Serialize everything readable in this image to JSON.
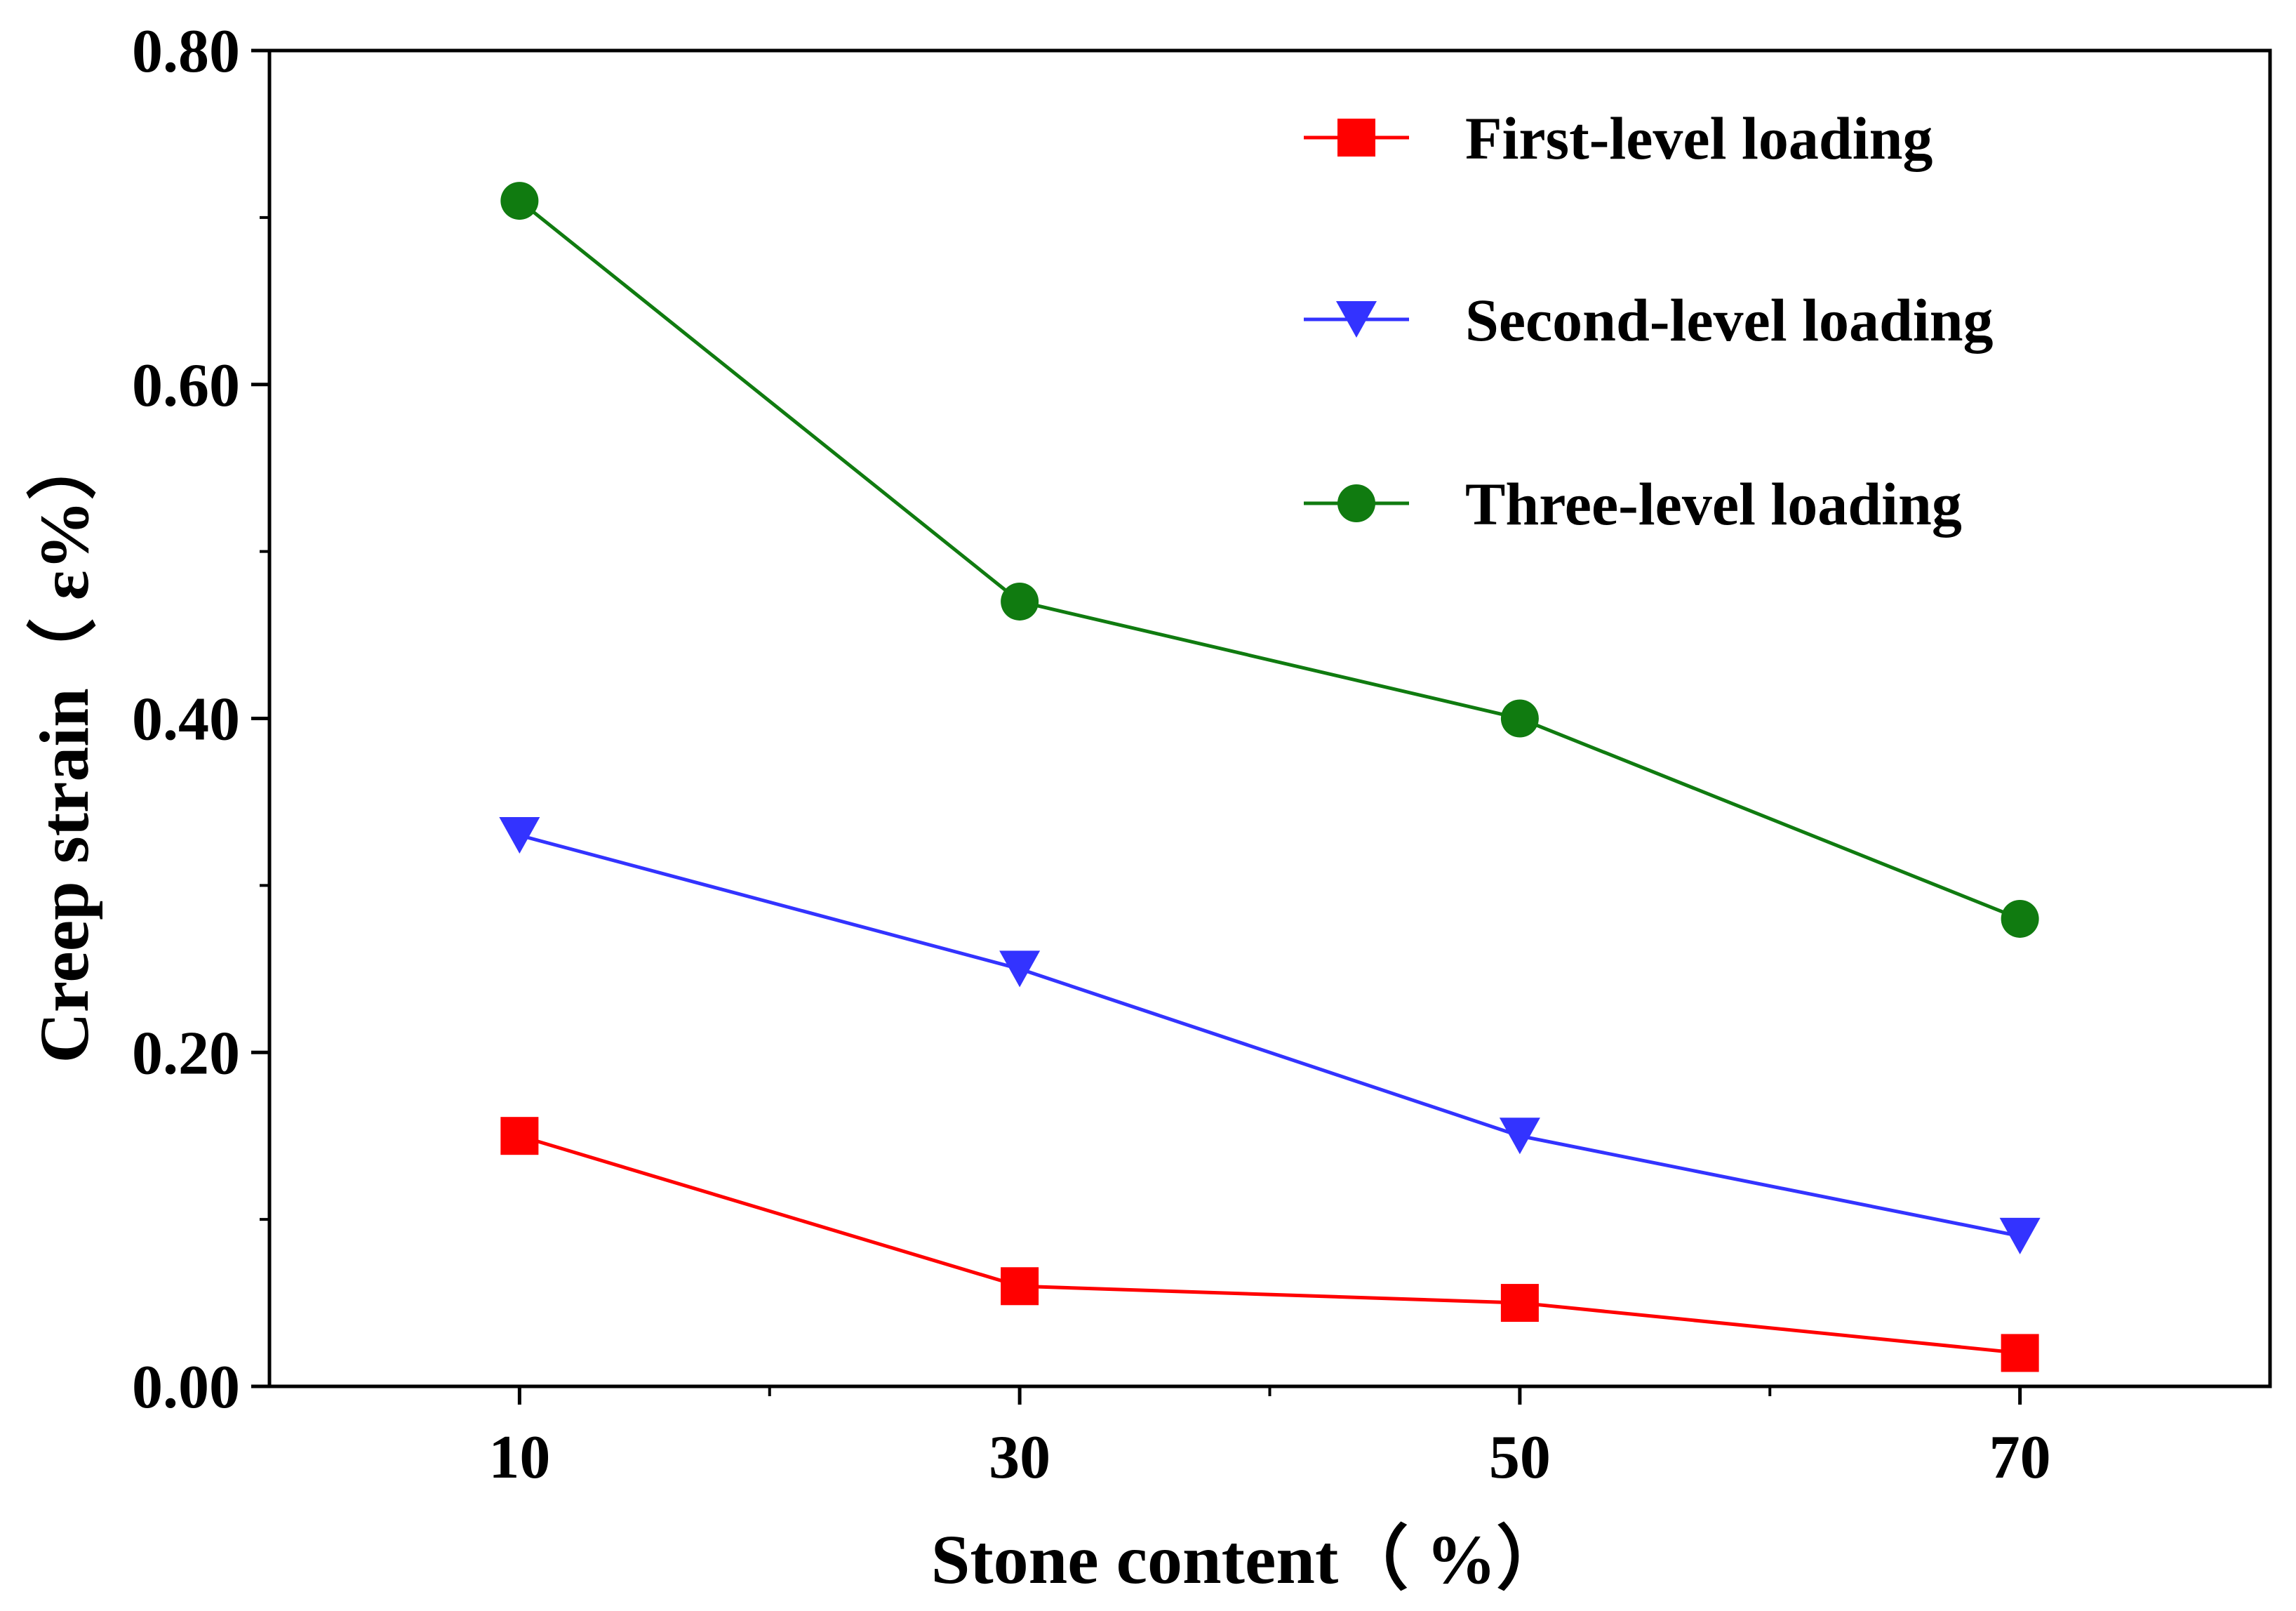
{
  "chart_data": {
    "type": "line",
    "xlabel": "Stone  content（ %）",
    "ylabel": "Creep strain（ ε%）",
    "x": [
      10,
      30,
      50,
      70
    ],
    "xlim": [
      0,
      80
    ],
    "ylim": [
      0,
      0.8
    ],
    "x_ticks": [
      "10",
      "30",
      "50",
      "70"
    ],
    "y_ticks": [
      "0.00",
      "0.20",
      "0.40",
      "0.60",
      "0.80"
    ],
    "legend_position": "top-right",
    "series": [
      {
        "name": "First-level loading",
        "marker": "square",
        "color": "#ff0000",
        "values": [
          0.15,
          0.06,
          0.05,
          0.02
        ]
      },
      {
        "name": "Second-level loading",
        "marker": "triangle-down",
        "color": "#3333ff",
        "values": [
          0.33,
          0.25,
          0.15,
          0.09
        ]
      },
      {
        "name": "Three-level loading",
        "marker": "circle",
        "color": "#107b10",
        "values": [
          0.71,
          0.47,
          0.4,
          0.28
        ]
      }
    ]
  }
}
